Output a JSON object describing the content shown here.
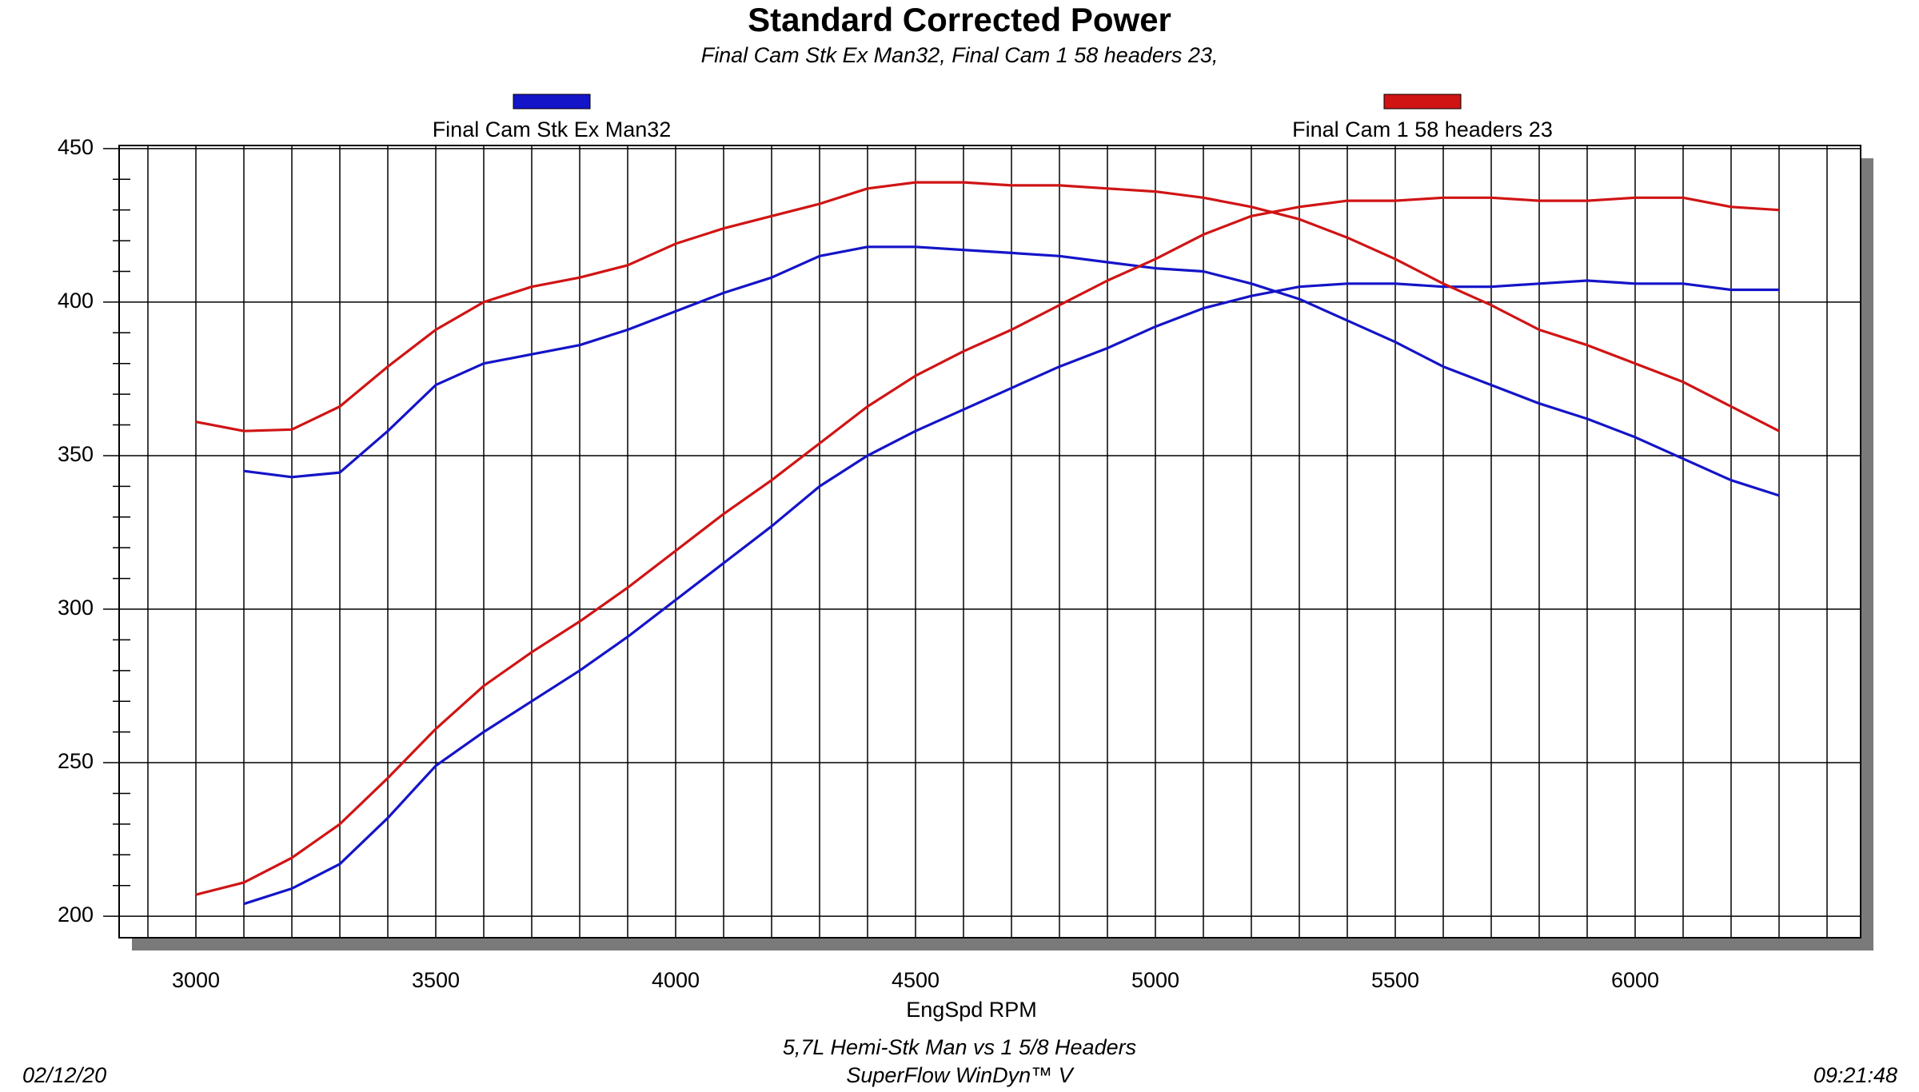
{
  "chart_data": {
    "type": "line",
    "title": "Standard Corrected Power",
    "subtitle": "Final Cam Stk Ex Man32,  Final Cam 1 58 headers 23,",
    "x_label": "EngSpd RPM",
    "footer": [
      "5,7L Hemi-Stk Man vs 1 5/8 Headers",
      "SuperFlow WinDyn™ V"
    ],
    "date": "02/12/20",
    "time": "09:21:48",
    "xlim": [
      2840,
      6470
    ],
    "ylim": [
      193,
      451
    ],
    "xticks": [
      3000,
      3500,
      4000,
      4500,
      5000,
      5500,
      6000
    ],
    "yticks": [
      200,
      250,
      300,
      350,
      400,
      450
    ],
    "xgrid": [
      2900,
      3000,
      3100,
      3200,
      3300,
      3400,
      3500,
      3600,
      3700,
      3800,
      3900,
      4000,
      4100,
      4200,
      4300,
      4400,
      4500,
      4600,
      4700,
      4800,
      4900,
      5000,
      5100,
      5200,
      5300,
      5400,
      5500,
      5600,
      5700,
      5800,
      5900,
      6000,
      6100,
      6200,
      6300,
      6400
    ],
    "yminor": [
      210,
      220,
      230,
      240,
      260,
      270,
      280,
      290,
      310,
      320,
      330,
      340,
      360,
      370,
      380,
      390,
      410,
      420,
      430,
      440
    ],
    "grid": true,
    "x": [
      3000,
      3100,
      3200,
      3300,
      3400,
      3500,
      3600,
      3700,
      3800,
      3900,
      4000,
      4100,
      4200,
      4300,
      4400,
      4500,
      4600,
      4700,
      4800,
      4900,
      5000,
      5100,
      5200,
      5300,
      5400,
      5500,
      5600,
      5700,
      5800,
      5900,
      6000,
      6100,
      6200,
      6300
    ],
    "series": [
      {
        "name": "Final Cam Stk Ex Man32",
        "color": "#1414c8",
        "curves": [
          [
            null,
            345,
            343,
            344.5,
            358,
            373,
            380,
            383,
            386,
            391,
            397,
            403,
            408,
            415,
            418,
            418,
            417,
            416,
            415,
            413,
            411,
            410,
            406,
            401,
            394,
            387,
            379,
            373,
            367,
            362,
            356,
            349,
            342,
            337
          ],
          [
            null,
            204,
            209,
            217,
            232,
            249,
            260,
            270,
            280,
            291,
            303,
            315,
            327,
            340,
            350,
            358,
            365,
            372,
            379,
            385,
            392,
            398,
            402,
            405,
            406,
            406,
            405,
            405,
            406,
            407,
            406,
            406,
            404,
            404
          ]
        ]
      },
      {
        "name": "Final Cam 1 58 headers 23",
        "color": "#d01414",
        "curves": [
          [
            361,
            358,
            358.5,
            366,
            379,
            391,
            400,
            405,
            408,
            412,
            419,
            424,
            428,
            432,
            437,
            439,
            439,
            438,
            438,
            437,
            436,
            434,
            431,
            427,
            421,
            414,
            406,
            399,
            391,
            386,
            380,
            374,
            366,
            358
          ],
          [
            207,
            211,
            219,
            230,
            245,
            261,
            275,
            286,
            296,
            307,
            319,
            331,
            342,
            354,
            366,
            376,
            384,
            391,
            399,
            407,
            414,
            422,
            428,
            431,
            433,
            433,
            434,
            434,
            433,
            433,
            434,
            434,
            431,
            430
          ]
        ]
      }
    ]
  }
}
